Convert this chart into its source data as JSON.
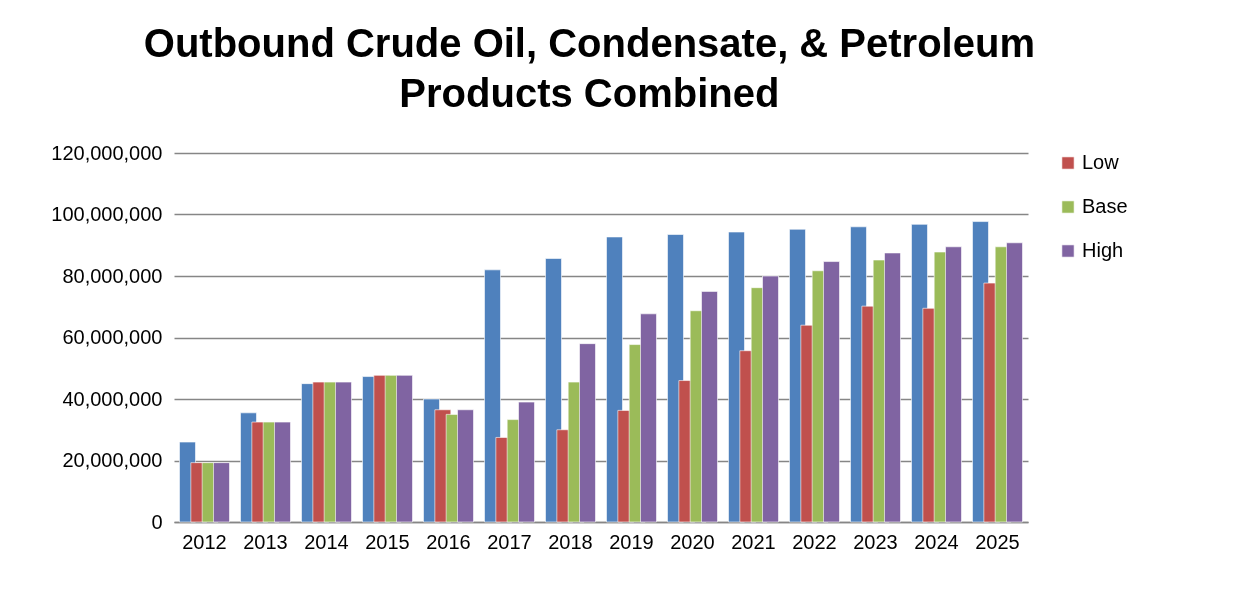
{
  "chart_data": {
    "type": "bar",
    "title": "Outbound Crude Oil, Condensate, & Petroleum Products Combined",
    "categories": [
      "2012",
      "2013",
      "2014",
      "2015",
      "2016",
      "2017",
      "2018",
      "2019",
      "2020",
      "2021",
      "2022",
      "2023",
      "2024",
      "2025"
    ],
    "series": [
      {
        "color": "#4f81bd",
        "values": [
          26000000,
          35500000,
          45000000,
          47300000,
          40000000,
          82000000,
          85700000,
          92700000,
          93500000,
          94300000,
          95200000,
          96000000,
          96800000,
          97700000
        ]
      },
      {
        "name": "Low",
        "color": "#c0504d",
        "values": [
          19300000,
          32500000,
          45500000,
          47700000,
          36500000,
          27500000,
          30000000,
          36300000,
          46000000,
          55700000,
          64000000,
          70200000,
          69500000,
          77700000
        ]
      },
      {
        "name": "Base",
        "color": "#9bbb59",
        "values": [
          19300000,
          32500000,
          45500000,
          47700000,
          35000000,
          33300000,
          45500000,
          57700000,
          68700000,
          76200000,
          81700000,
          85200000,
          87800000,
          89500000
        ]
      },
      {
        "name": "High",
        "color": "#8064a2",
        "values": [
          19300000,
          32500000,
          45500000,
          47700000,
          36500000,
          39000000,
          58000000,
          67700000,
          75000000,
          80000000,
          84700000,
          87500000,
          89500000,
          90800000
        ]
      }
    ],
    "ylim": [
      0,
      120000000
    ],
    "yticks": [
      0,
      {
        "value": 20000000,
        "label": "20,000,000"
      },
      {
        "value": 40000000,
        "label": "40,000,000"
      },
      {
        "value": 60000000,
        "label": "60,000,000"
      },
      {
        "value": 80000000,
        "label": "80,000,000"
      },
      {
        "value": 100000000,
        "label": "100,000,000"
      },
      {
        "value": 120000000,
        "label": "120,000,000"
      }
    ],
    "grid": "y",
    "legend": "right"
  }
}
